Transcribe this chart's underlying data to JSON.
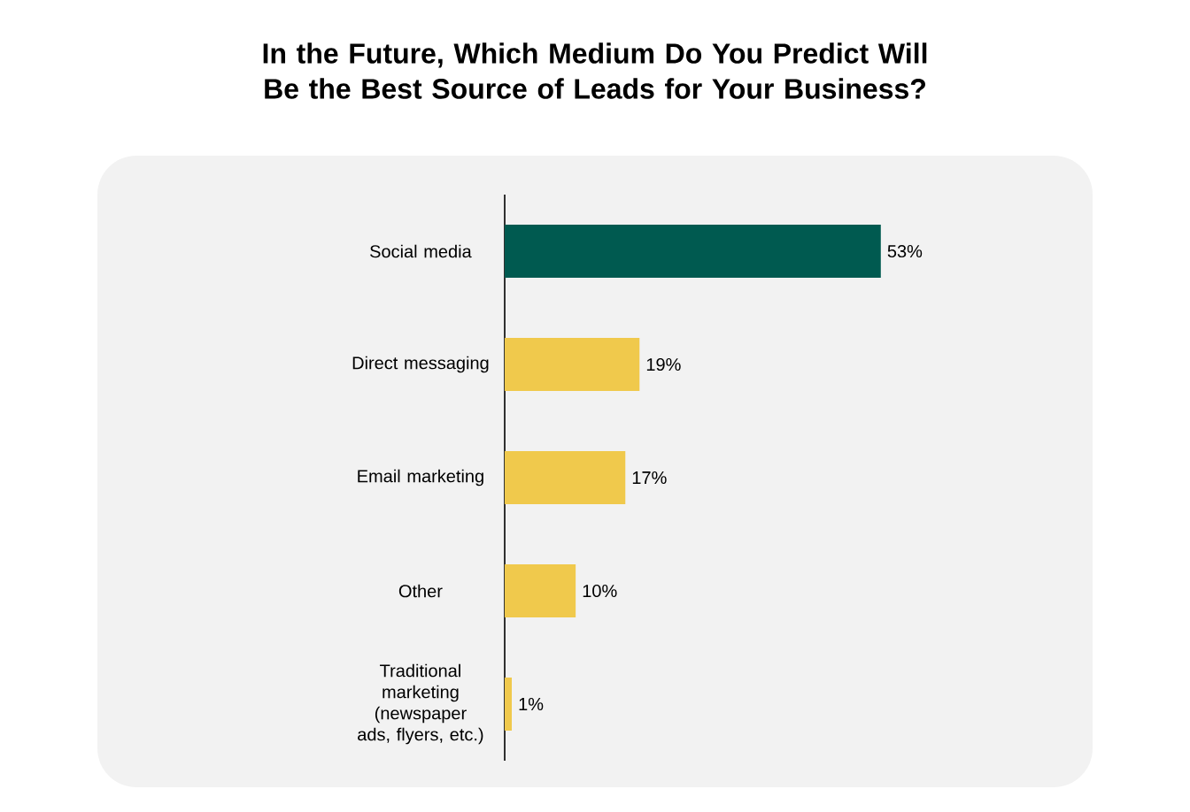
{
  "chart_data": {
    "type": "bar",
    "orientation": "horizontal",
    "title": "In the Future, Which Medium Do You Predict Will Be the Best Source of Leads for Your Business?",
    "categories": [
      "Social media",
      "Direct messaging",
      "Email marketing",
      "Other",
      "Traditional marketing (newspaper ads, flyers, etc.)"
    ],
    "values": [
      53,
      19,
      17,
      10,
      1
    ],
    "colors": [
      "#005a50",
      "#f0c94c",
      "#f0c94c",
      "#f0c94c",
      "#f0c94c"
    ],
    "value_labels": [
      "53%",
      "19%",
      "17%",
      "10%",
      "1%"
    ]
  }
}
